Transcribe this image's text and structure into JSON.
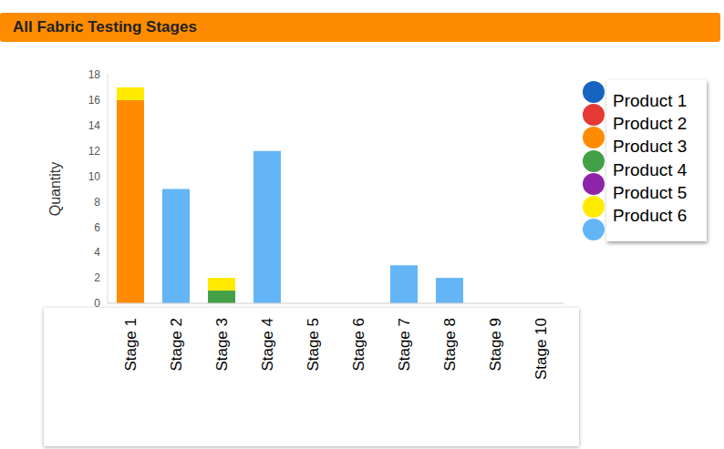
{
  "chart_data": {
    "type": "bar",
    "title": "All Fabric Testing Stages",
    "y_label": "Quantity",
    "categories": [
      "Stage 1",
      "Stage 2",
      "Stage 3",
      "Stage 4",
      "Stage 5",
      "Stage 6",
      "Stage 7",
      "Stage 8",
      "Stage 9",
      "Stage 10"
    ],
    "series": [
      {
        "name": "Product 1",
        "color": "#1565c0",
        "values": [
          0,
          0,
          0,
          0,
          0,
          0,
          0,
          0,
          0,
          0
        ]
      },
      {
        "name": "Product 2",
        "color": "#e53935",
        "values": [
          0,
          0,
          0,
          0,
          0,
          0,
          0,
          0,
          0,
          0
        ]
      },
      {
        "name": "Product 3",
        "color": "#ff8c00",
        "values": [
          16,
          0,
          0,
          0,
          0,
          0,
          0,
          0,
          0,
          0
        ]
      },
      {
        "name": "Product 4",
        "color": "#43a047",
        "values": [
          0,
          0,
          1,
          0,
          0,
          0,
          0,
          0,
          0,
          0
        ]
      },
      {
        "name": "Product 5",
        "color": "#8e24aa",
        "values": [
          0,
          0,
          0,
          0,
          0,
          0,
          0,
          0,
          0,
          0
        ]
      },
      {
        "name": "Product 6",
        "color": "#ffeb00",
        "values": [
          1,
          0,
          1,
          0,
          0,
          0,
          0,
          0,
          0,
          0
        ]
      },
      {
        "color": "#64b5f6",
        "values": [
          0,
          9,
          0,
          12,
          0,
          0,
          3,
          2,
          0,
          0
        ]
      }
    ],
    "ylim": [
      0,
      18
    ],
    "yticks": [
      0,
      2,
      4,
      6,
      8,
      10,
      12,
      14,
      16,
      18
    ],
    "stacked": true,
    "grid": false,
    "legend": "right"
  }
}
